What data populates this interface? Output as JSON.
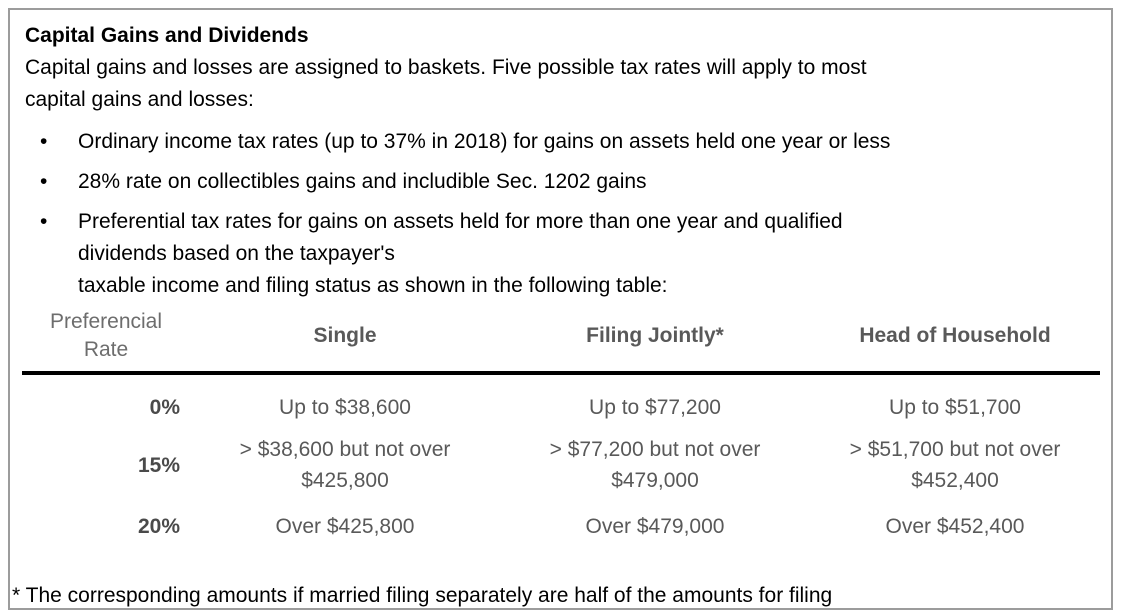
{
  "panel": {
    "title": "Capital Gains and Dividends",
    "intro": "Capital gains and losses are assigned to baskets. Five possible tax rates will apply to most\ncapital gains and losses:",
    "bullet_marker": "•",
    "bullets": [
      "Ordinary income tax rates (up to 37% in 2018) for gains on assets held one year or less",
      "28% rate on collectibles gains and includible Sec. 1202 gains",
      "Preferential tax rates for gains on assets held for more than one year and qualified\ndividends based on the taxpayer's\ntaxable income and filing status as shown in the following table:"
    ],
    "footnote": "* The corresponding amounts if married filing separately are half of the amounts for filing"
  },
  "table": {
    "header": {
      "rate": "Preferencial\nRate",
      "col_single": "Single",
      "col_jointly": "Filing Jointly*",
      "col_hoh": "Head of Household"
    },
    "rows": [
      {
        "rate": "0%",
        "cells": [
          "Up to $38,600",
          "Up to $77,200",
          "Up to $51,700"
        ]
      },
      {
        "rate": "15%",
        "cells": [
          "> $38,600 but not over\n$425,800",
          "> $77,200 but not over\n$479,000",
          "> $51,700 but not over\n$452,400"
        ]
      },
      {
        "rate": "20%",
        "cells": [
          "Over $425,800",
          "Over $479,000",
          "Over $452,400"
        ]
      }
    ]
  },
  "colors": {
    "frame_border": "#9c9c9c",
    "body_text": "#000000",
    "table_text": "#595959",
    "header_muted": "#6d6d6d",
    "rate_bold": "#4a4a4a",
    "rule": "#000000"
  },
  "chart_data": {
    "type": "table",
    "title": "Preferencial Rate",
    "columns": [
      "Preferencial Rate",
      "Single",
      "Filing Jointly*",
      "Head of Household"
    ],
    "rows": [
      [
        "0%",
        "Up to $38,600",
        "Up to $77,200",
        "Up to $51,700"
      ],
      [
        "15%",
        "> $38,600 but not over $425,800",
        "> $77,200 but not over $479,000",
        "> $51,700 but not over $452,400"
      ],
      [
        "20%",
        "Over $425,800",
        "Over $479,000",
        "Over $452,400"
      ]
    ]
  }
}
